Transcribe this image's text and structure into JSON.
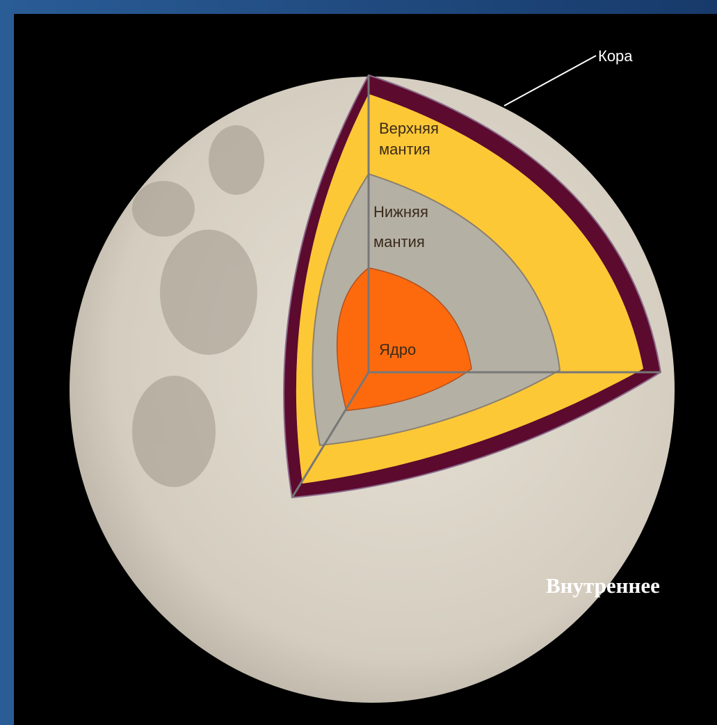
{
  "labels": {
    "crust": "Кора",
    "upper_mantle": [
      "Верхняя",
      "мантия"
    ],
    "lower_mantle": [
      "Нижняя",
      "мантия"
    ],
    "core": "Ядро"
  },
  "caption": "Внутреннее"
}
